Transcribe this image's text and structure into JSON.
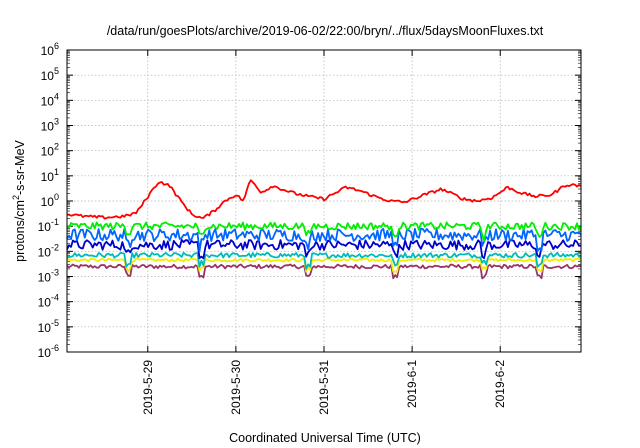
{
  "chart_data": {
    "type": "line",
    "title": "/data/run/goesPlots/archive/2019-06-02/22:00/bryn/../flux/5daysMoonFluxes.txt",
    "xlabel": "Coordinated Universal Time (UTC)",
    "ylabel": {
      "pre": "protons/cm",
      "sup": "2",
      "post": "-s-sr-MeV"
    },
    "x_range": [
      "2019-05-28T02:00",
      "2019-06-02T22:00"
    ],
    "x_ticks": [
      "2019-5-29",
      "2019-5-30",
      "2019-5-31",
      "2019-6-1",
      "2019-6-2"
    ],
    "y_scale": "log",
    "y_range": [
      1e-06,
      1000000.0
    ],
    "y_ticks": [
      {
        "base": "10",
        "exp": "-6"
      },
      {
        "base": "10",
        "exp": "-5"
      },
      {
        "base": "10",
        "exp": "-4"
      },
      {
        "base": "10",
        "exp": "-3"
      },
      {
        "base": "10",
        "exp": "-2"
      },
      {
        "base": "10",
        "exp": "-1"
      },
      {
        "base": "10",
        "exp": "0"
      },
      {
        "base": "10",
        "exp": "1"
      },
      {
        "base": "10",
        "exp": "2"
      },
      {
        "base": "10",
        "exp": "3"
      },
      {
        "base": "10",
        "exp": "4"
      },
      {
        "base": "10",
        "exp": "5"
      },
      {
        "base": "10",
        "exp": "6"
      }
    ],
    "grid": true,
    "series": [
      {
        "color": "#ff0000",
        "noise": 0.06,
        "values": [
          [
            "2019-05-28T02:00",
            0.3
          ],
          [
            "2019-05-28T06:00",
            0.25
          ],
          [
            "2019-05-28T12:00",
            0.22
          ],
          [
            "2019-05-28T18:00",
            0.25
          ],
          [
            "2019-05-28T21:00",
            0.35
          ],
          [
            "2019-05-29T00:00",
            1.5
          ],
          [
            "2019-05-29T03:00",
            6
          ],
          [
            "2019-05-29T06:00",
            4
          ],
          [
            "2019-05-29T09:00",
            1
          ],
          [
            "2019-05-29T12:00",
            0.3
          ],
          [
            "2019-05-29T15:00",
            0.2
          ],
          [
            "2019-05-29T18:00",
            0.4
          ],
          [
            "2019-05-29T21:00",
            1.0
          ],
          [
            "2019-05-30T00:00",
            1.8
          ],
          [
            "2019-05-30T02:00",
            1.0
          ],
          [
            "2019-05-30T04:00",
            7
          ],
          [
            "2019-05-30T07:00",
            2.2
          ],
          [
            "2019-05-30T10:00",
            4
          ],
          [
            "2019-05-30T16:00",
            2
          ],
          [
            "2019-05-30T20:00",
            1.5
          ],
          [
            "2019-05-31T00:00",
            1.2
          ],
          [
            "2019-05-31T06:00",
            3.5
          ],
          [
            "2019-05-31T10:00",
            2.5
          ],
          [
            "2019-05-31T14:00",
            1.5
          ],
          [
            "2019-05-31T18:00",
            1.0
          ],
          [
            "2019-05-31T22:00",
            0.9
          ],
          [
            "2019-06-01T02:00",
            1.5
          ],
          [
            "2019-06-01T08:00",
            3
          ],
          [
            "2019-06-01T14:00",
            1.2
          ],
          [
            "2019-06-01T18:00",
            1.0
          ],
          [
            "2019-06-01T22:00",
            1.4
          ],
          [
            "2019-06-02T02:00",
            3.5
          ],
          [
            "2019-06-02T06:00",
            2.0
          ],
          [
            "2019-06-02T10:00",
            1.5
          ],
          [
            "2019-06-02T14:00",
            1.8
          ],
          [
            "2019-06-02T18:00",
            4.5
          ],
          [
            "2019-06-02T22:00",
            4
          ]
        ]
      },
      {
        "color": "#00ee00",
        "level": 0.1,
        "noise": 0.15
      },
      {
        "color": "#0066ff",
        "level": 0.045,
        "noise": 0.25
      },
      {
        "color": "#0000cc",
        "level": 0.018,
        "noise": 0.2
      },
      {
        "color": "#00bbbb",
        "level": 0.007,
        "noise": 0.1
      },
      {
        "color": "#eeee00",
        "level": 0.0045,
        "noise": 0.06
      },
      {
        "color": "#993366",
        "level": 0.0025,
        "noise": 0.08
      }
    ]
  }
}
